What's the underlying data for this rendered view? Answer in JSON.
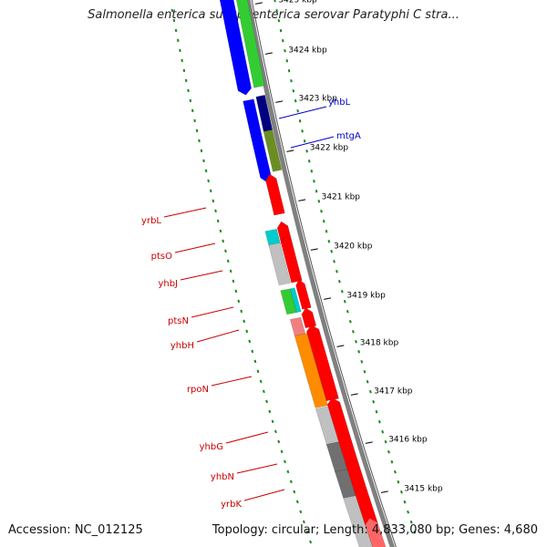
{
  "title": "Salmonella enterica subsp. enterica serovar Paratyphi C stra...",
  "footer": {
    "accession": "Accession: NC_012125",
    "summary": "Topology: circular; Length: 4,833,080 bp; Genes: 4,680"
  },
  "ticks": [
    "3425 kbp",
    "3424 kbp",
    "3423 kbp",
    "3422 kbp",
    "3421 kbp",
    "3420 kbp",
    "3419 kbp",
    "3418 kbp",
    "3417 kbp",
    "3416 kbp",
    "3415 kbp"
  ],
  "gene_labels_forward": [
    "yhbL",
    "mtgA"
  ],
  "gene_labels_reverse": [
    "yrbL",
    "ptsO",
    "yhbJ",
    "ptsN",
    "yhbH",
    "rpoN",
    "yhbG",
    "yhbN",
    "yrbK"
  ],
  "colors": {
    "forward_label": "#0000cc",
    "reverse_label": "#cc0000",
    "backbone": "#808080",
    "tick_marks": "#1a8a1a",
    "cds_forward": "#0000ff",
    "cds_forward_dark": "#000080",
    "cds_forward_green": "#33cc33",
    "cds_forward_olive": "#6b8e23",
    "cds_reverse": "#ff0000",
    "cds_reverse_light": "#ff6666",
    "cyan": "#00cccc",
    "green": "#33cc33",
    "grey": "#c0c0c0",
    "dark_grey": "#707070",
    "orange": "#ff8c00",
    "pink": "#f08080"
  }
}
